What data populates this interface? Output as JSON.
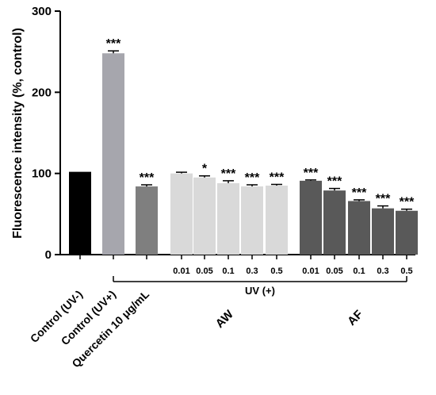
{
  "chart_data": {
    "type": "bar",
    "ylabel": "Fluorescence intensity (%, control)",
    "ylim": [
      0,
      300
    ],
    "yticks": [
      "0",
      "100",
      "200",
      "300"
    ],
    "bars": [
      {
        "label": "Control (UV-)",
        "value": 102,
        "error": 0,
        "sig": "",
        "color": "#000000"
      },
      {
        "label": "Control (UV+)",
        "value": 248,
        "error": 3,
        "sig": "***",
        "color": "#a6a6ad"
      },
      {
        "label": "Quercetin 10 μg/mL",
        "value": 84,
        "error": 2,
        "sig": "***",
        "color": "#7f7f7f"
      },
      {
        "label": "0.01",
        "value": 100,
        "error": 1.5,
        "sig": "",
        "color": "#d9d9d9"
      },
      {
        "label": "0.05",
        "value": 95,
        "error": 2,
        "sig": "*",
        "color": "#d9d9d9"
      },
      {
        "label": "0.1",
        "value": 88,
        "error": 3,
        "sig": "***",
        "color": "#d9d9d9"
      },
      {
        "label": "0.3",
        "value": 84,
        "error": 2,
        "sig": "***",
        "color": "#d9d9d9"
      },
      {
        "label": "0.5",
        "value": 85,
        "error": 1.5,
        "sig": "***",
        "color": "#d9d9d9"
      },
      {
        "label": "0.01",
        "value": 91,
        "error": 1,
        "sig": "***",
        "color": "#595959"
      },
      {
        "label": "0.05",
        "value": 79,
        "error": 2.5,
        "sig": "***",
        "color": "#595959"
      },
      {
        "label": "0.1",
        "value": 66,
        "error": 1.5,
        "sig": "***",
        "color": "#595959"
      },
      {
        "label": "0.3",
        "value": 57,
        "error": 3,
        "sig": "***",
        "color": "#595959"
      },
      {
        "label": "0.5",
        "value": 54,
        "error": 2,
        "sig": "***",
        "color": "#595959"
      }
    ],
    "groups": [
      {
        "label": "AW",
        "from": 3,
        "to": 7
      },
      {
        "label": "AF",
        "from": 8,
        "to": 12
      }
    ],
    "bracket": {
      "label": "UV (+)",
      "from": 1,
      "to": 12
    }
  }
}
